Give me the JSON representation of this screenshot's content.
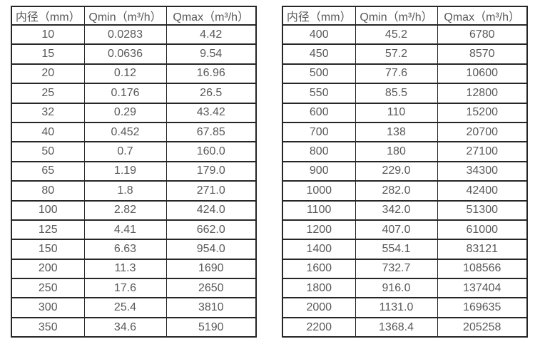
{
  "colors": {
    "border": "#262626",
    "text": "#595959",
    "background": "#ffffff"
  },
  "tables": [
    {
      "name": "small-diameters",
      "headers": [
        "内径（mm）",
        "Qmin（m³/h）",
        "Qmax（m³/h）"
      ],
      "rows": [
        [
          "10",
          "0.0283",
          "4.42"
        ],
        [
          "15",
          "0.0636",
          "9.54"
        ],
        [
          "20",
          "0.12",
          "16.96"
        ],
        [
          "25",
          "0.176",
          "26.5"
        ],
        [
          "32",
          "0.29",
          "43.42"
        ],
        [
          "40",
          "0.452",
          "67.85"
        ],
        [
          "50",
          "0.7",
          "160.0"
        ],
        [
          "65",
          "1.19",
          "179.0"
        ],
        [
          "80",
          "1.8",
          "271.0"
        ],
        [
          "100",
          "2.82",
          "424.0"
        ],
        [
          "125",
          "4.41",
          "662.0"
        ],
        [
          "150",
          "6.63",
          "954.0"
        ],
        [
          "200",
          "11.3",
          "1690"
        ],
        [
          "250",
          "17.6",
          "2650"
        ],
        [
          "300",
          "25.4",
          "3810"
        ],
        [
          "350",
          "34.6",
          "5190"
        ]
      ]
    },
    {
      "name": "large-diameters",
      "headers": [
        "内径（mm）",
        "Qmin（m³/h）",
        "Qmax（m³/h）"
      ],
      "rows": [
        [
          "400",
          "45.2",
          "6780"
        ],
        [
          "450",
          "57.2",
          "8570"
        ],
        [
          "500",
          "77.6",
          "10600"
        ],
        [
          "550",
          "85.5",
          "12800"
        ],
        [
          "600",
          "110",
          "15200"
        ],
        [
          "700",
          "138",
          "20700"
        ],
        [
          "800",
          "180",
          "27100"
        ],
        [
          "900",
          "229.0",
          "34300"
        ],
        [
          "1000",
          "282.0",
          "42400"
        ],
        [
          "1100",
          "342.0",
          "51300"
        ],
        [
          "1200",
          "407.0",
          "61000"
        ],
        [
          "1400",
          "554.1",
          "83121"
        ],
        [
          "1600",
          "732.7",
          "108566"
        ],
        [
          "1800",
          "916.0",
          "137404"
        ],
        [
          "2000",
          "1131.0",
          "169635"
        ],
        [
          "2200",
          "1368.4",
          "205258"
        ]
      ]
    }
  ]
}
